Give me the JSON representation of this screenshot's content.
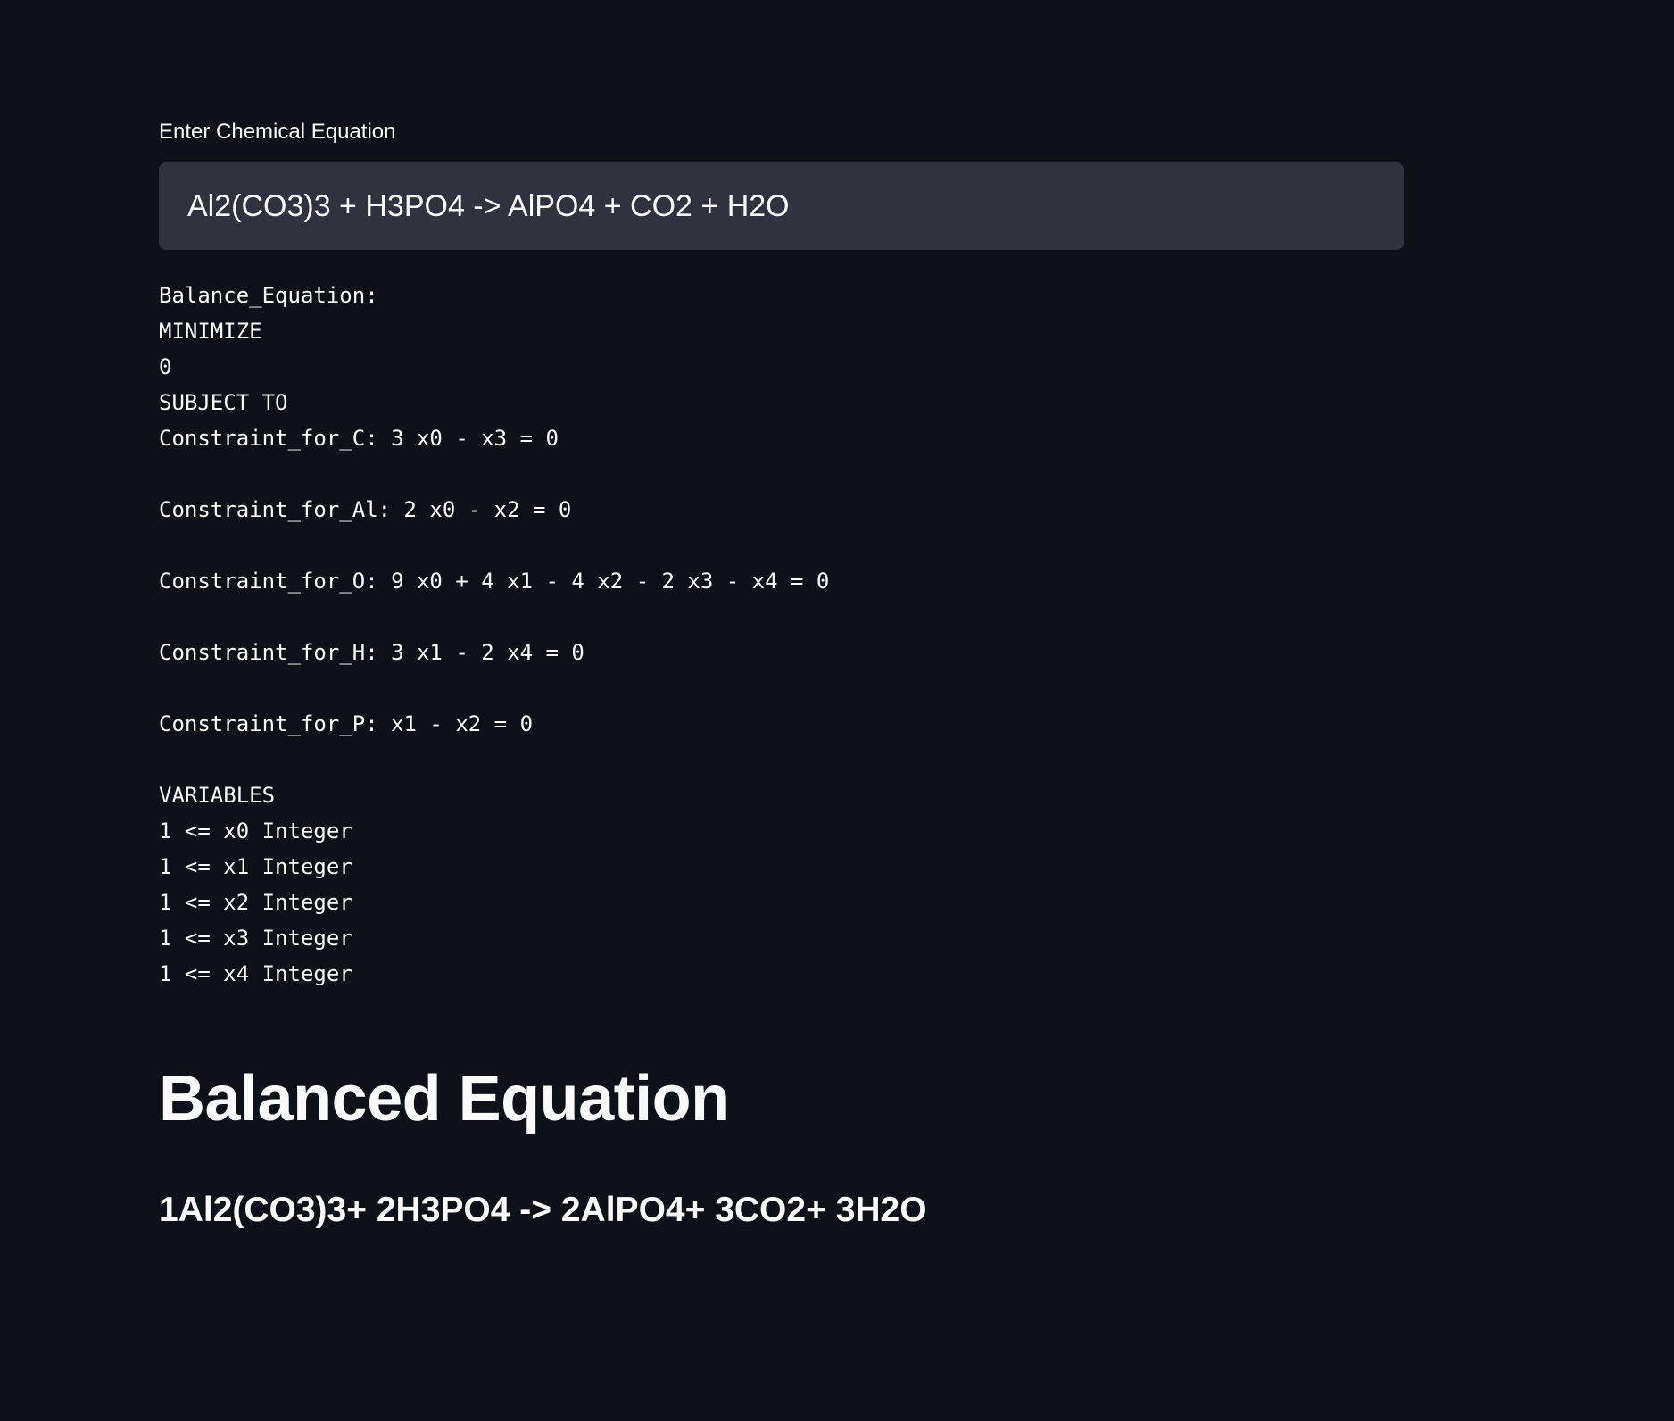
{
  "input": {
    "label": "Enter Chemical Equation",
    "value": "Al2(CO3)3 + H3PO4 -> AlPO4 + CO2 + H2O"
  },
  "lp_output": [
    "Balance_Equation:",
    "MINIMIZE",
    "0",
    "SUBJECT TO",
    "Constraint_for_C: 3 x0 - x3 = 0",
    "",
    "Constraint_for_Al: 2 x0 - x2 = 0",
    "",
    "Constraint_for_O: 9 x0 + 4 x1 - 4 x2 - 2 x3 - x4 = 0",
    "",
    "Constraint_for_H: 3 x1 - 2 x4 = 0",
    "",
    "Constraint_for_P: x1 - x2 = 0",
    "",
    "VARIABLES",
    "1 <= x0 Integer",
    "1 <= x1 Integer",
    "1 <= x2 Integer",
    "1 <= x3 Integer",
    "1 <= x4 Integer"
  ],
  "result": {
    "heading": "Balanced Equation",
    "equation": "1Al2(CO3)3+ 2H3PO4 -> 2AlPO4+ 3CO2+ 3H2O"
  }
}
